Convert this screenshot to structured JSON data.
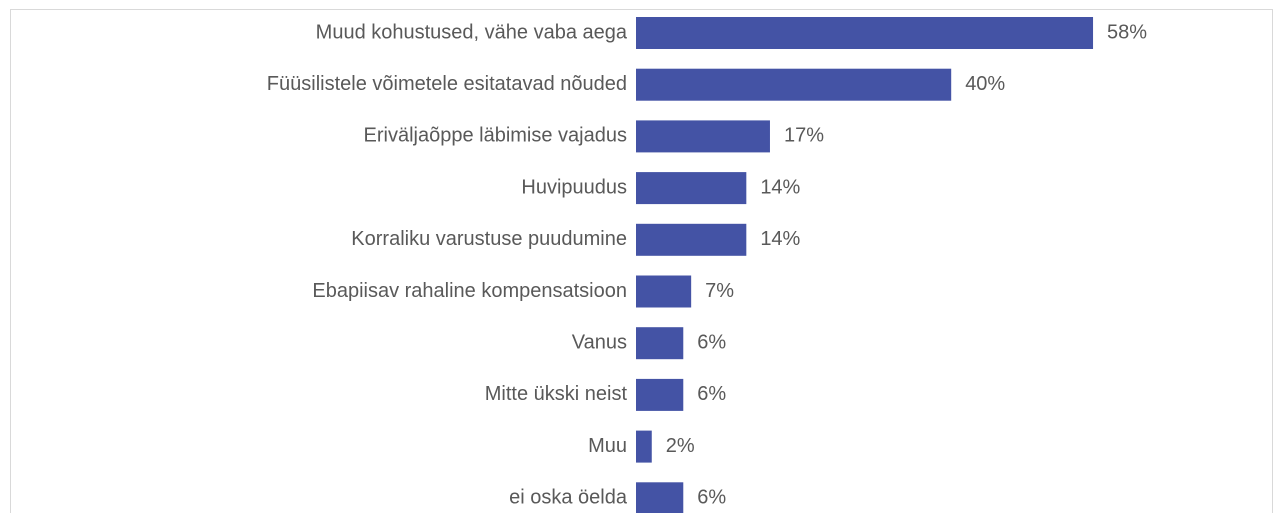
{
  "chart_data": {
    "type": "barh",
    "categories": [
      "Muud kohustused, vähe vaba aega",
      "Füüsilistele võimetele esitatavad nõuded",
      "Eriväljaõppe läbimise vajadus",
      "Huvipuudus",
      "Korraliku varustuse puudumine",
      "Ebapiisav rahaline kompensatsioon",
      "Vanus",
      "Mitte ükski neist",
      "Muu",
      "ei oska öelda"
    ],
    "values": [
      58,
      40,
      17,
      14,
      14,
      7,
      6,
      6,
      2,
      6
    ],
    "value_labels": [
      "58%",
      "40%",
      "17%",
      "14%",
      "14%",
      "7%",
      "6%",
      "6%",
      "2%",
      "6%"
    ],
    "color": "#4453a5"
  }
}
